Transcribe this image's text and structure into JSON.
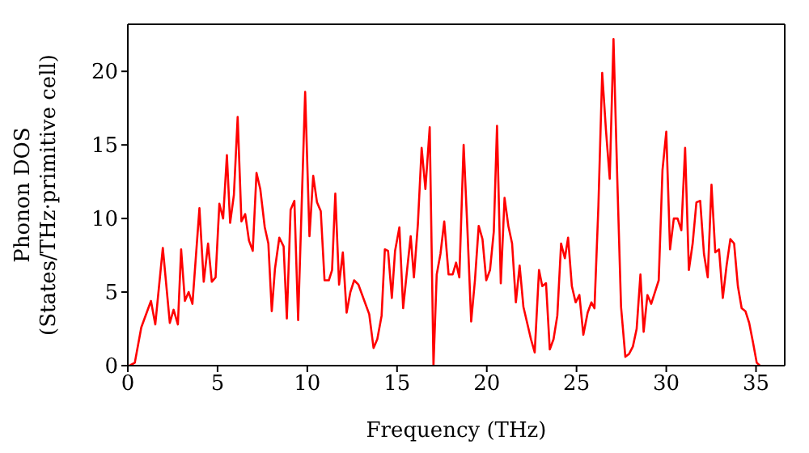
{
  "chart_data": {
    "type": "line",
    "xlabel": "Frequency (THz)",
    "ylabel": "Phonon DOS\n(States/THz·primitive cell)",
    "xlim": [
      0,
      36.6
    ],
    "ylim": [
      0,
      23.2
    ],
    "xticks": [
      0,
      5,
      10,
      15,
      20,
      25,
      30,
      35
    ],
    "yticks": [
      0,
      5,
      10,
      15,
      20
    ],
    "grid": false,
    "legend": false,
    "marker": "none",
    "line_style": "solid",
    "x": [
      0.1,
      0.39,
      0.75,
      1.29,
      1.53,
      1.95,
      2.34,
      2.55,
      2.79,
      2.97,
      3.18,
      3.39,
      3.6,
      3.99,
      4.23,
      4.47,
      4.68,
      4.89,
      5.1,
      5.31,
      5.52,
      5.7,
      5.91,
      6.12,
      6.33,
      6.54,
      6.75,
      6.96,
      7.17,
      7.38,
      7.63,
      7.83,
      8.02,
      8.2,
      8.44,
      8.68,
      8.86,
      9.07,
      9.28,
      9.49,
      9.88,
      10.12,
      10.33,
      10.54,
      10.75,
      10.96,
      11.2,
      11.38,
      11.56,
      11.77,
      11.98,
      12.19,
      12.4,
      12.61,
      12.85,
      13.06,
      13.45,
      13.69,
      13.9,
      14.14,
      14.32,
      14.5,
      14.71,
      14.89,
      15.13,
      15.34,
      15.55,
      15.76,
      15.94,
      16.16,
      16.37,
      16.58,
      16.82,
      17.03,
      17.21,
      17.42,
      17.63,
      17.87,
      18.1,
      18.29,
      18.47,
      18.71,
      18.92,
      19.13,
      19.34,
      19.55,
      19.76,
      19.97,
      20.18,
      20.39,
      20.57,
      20.78,
      20.99,
      21.2,
      21.41,
      21.62,
      21.83,
      22.04,
      22.25,
      22.46,
      22.67,
      22.91,
      23.09,
      23.3,
      23.51,
      23.72,
      23.93,
      24.14,
      24.35,
      24.53,
      24.74,
      24.95,
      25.16,
      25.38,
      25.62,
      25.83,
      26.0,
      26.22,
      26.43,
      26.64,
      26.85,
      27.06,
      27.27,
      27.48,
      27.72,
      27.93,
      28.14,
      28.35,
      28.56,
      28.74,
      28.95,
      29.16,
      29.37,
      29.58,
      29.79,
      30.0,
      30.21,
      30.42,
      30.63,
      30.84,
      31.05,
      31.26,
      31.47,
      31.68,
      31.89,
      32.1,
      32.31,
      32.52,
      32.73,
      32.94,
      33.15,
      33.36,
      33.57,
      33.78,
      33.99,
      34.2,
      34.41,
      34.62,
      34.83,
      35.04,
      35.22
    ],
    "series": [
      {
        "color": "#ff0000",
        "values": [
          0,
          0.2,
          2.6,
          4.4,
          2.8,
          8.0,
          2.9,
          3.8,
          2.8,
          7.9,
          4.4,
          5.0,
          4.2,
          10.7,
          5.7,
          8.3,
          5.7,
          6.0,
          11.0,
          10.0,
          14.3,
          9.7,
          11.6,
          16.9,
          9.8,
          10.3,
          8.5,
          7.8,
          13.1,
          12.0,
          9.4,
          8.3,
          3.7,
          6.6,
          8.7,
          8.1,
          3.2,
          10.6,
          11.2,
          3.1,
          18.6,
          8.8,
          12.9,
          11.1,
          10.5,
          5.8,
          5.8,
          6.5,
          11.7,
          5.5,
          7.7,
          3.6,
          5.0,
          5.8,
          5.5,
          4.8,
          3.5,
          1.2,
          1.8,
          3.4,
          7.9,
          7.8,
          4.6,
          7.8,
          9.4,
          3.9,
          6.4,
          8.8,
          6.0,
          9.6,
          14.8,
          12.0,
          16.2,
          0,
          6.2,
          7.6,
          9.8,
          6.2,
          6.2,
          7.0,
          6.0,
          15.0,
          9.3,
          3.0,
          5.8,
          9.5,
          8.6,
          5.8,
          6.5,
          9.1,
          16.3,
          5.6,
          11.4,
          9.5,
          8.3,
          4.3,
          6.8,
          4.0,
          2.9,
          1.8,
          0.9,
          6.5,
          5.4,
          5.6,
          1.1,
          1.8,
          3.4,
          8.3,
          7.3,
          8.7,
          5.4,
          4.3,
          4.8,
          2.1,
          3.6,
          4.3,
          3.9,
          10.9,
          19.9,
          16.0,
          12.7,
          22.2,
          12.7,
          4.0,
          0.6,
          0.8,
          1.3,
          2.5,
          6.2,
          2.3,
          4.8,
          4.2,
          5.0,
          5.8,
          13.3,
          15.9,
          7.9,
          10.0,
          10.0,
          9.2,
          14.8,
          6.5,
          8.3,
          11.1,
          11.2,
          7.6,
          6.0,
          12.3,
          7.7,
          7.9,
          4.6,
          6.8,
          8.6,
          8.3,
          5.4,
          3.9,
          3.7,
          2.9,
          1.6,
          0.2,
          0
        ]
      }
    ]
  }
}
